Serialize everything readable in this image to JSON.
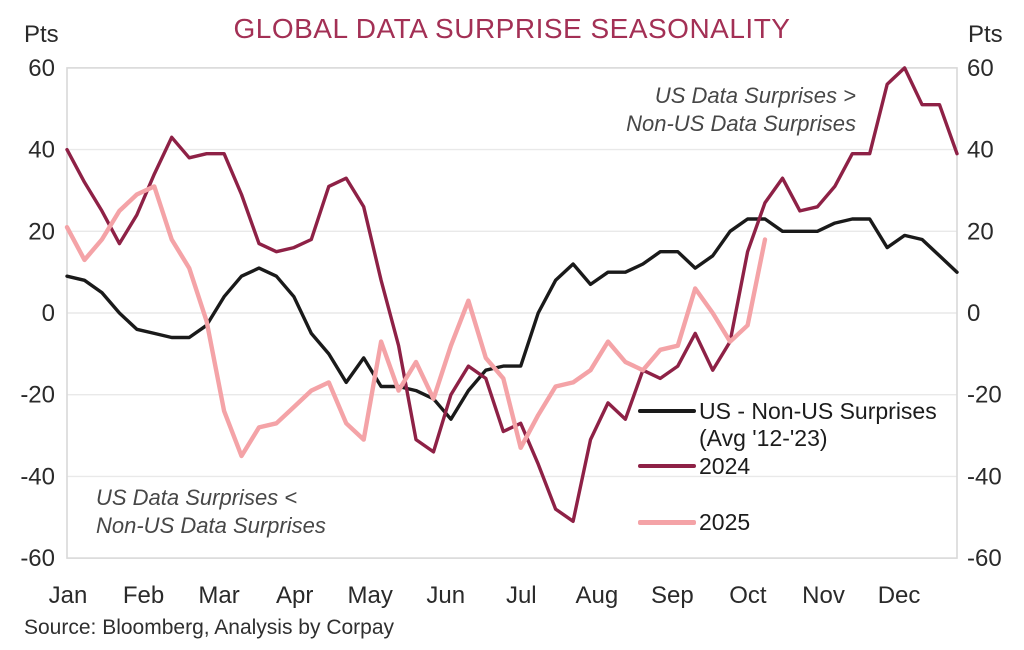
{
  "chart": {
    "title": "GLOBAL DATA SURPRISE SEASONALITY",
    "units_label": "Pts",
    "source": "Source: Bloomberg, Analysis by Corpay",
    "annotation_top_right": {
      "line1": "US Data Surprises >",
      "line2": "Non-US Data Surprises"
    },
    "annotation_bottom_left": {
      "line1": "US Data Surprises <",
      "line2": "Non-US Data Surprises"
    }
  },
  "legend": {
    "avg_label_line1": "US - Non-US Surprises",
    "avg_label_line2": "(Avg '12-'23)",
    "label_2024": "2024",
    "label_2025": "2025"
  },
  "chart_data": {
    "type": "line",
    "title": "GLOBAL DATA SURPRISE SEASONALITY",
    "xlabel": "",
    "ylabel": "Pts",
    "ylim": [
      -60,
      60
    ],
    "y_ticks": [
      60,
      40,
      20,
      0,
      -20,
      -40,
      -60
    ],
    "x_tick_labels": [
      "Jan",
      "Feb",
      "Mar",
      "Apr",
      "May",
      "Jun",
      "Jul",
      "Aug",
      "Sep",
      "Oct",
      "Nov",
      "Dec"
    ],
    "x_unit": "weekly (52 points across Jan-Dec)",
    "grid": "horizontal-light",
    "legend_position": "inside-right",
    "series": [
      {
        "name": "US - Non-US Surprises (Avg '12-'23)",
        "color": "#1a1a1a",
        "width": 3.4,
        "values": [
          9,
          8,
          5,
          0,
          -4,
          -5,
          -6,
          -6,
          -3,
          4,
          9,
          11,
          9,
          4,
          -5,
          -10,
          -17,
          -11,
          -18,
          -18,
          -19,
          -21,
          -26,
          -19,
          -14,
          -13,
          -13,
          0,
          8,
          12,
          7,
          10,
          10,
          12,
          15,
          15,
          11,
          14,
          20,
          23,
          23,
          20,
          20,
          20,
          22,
          23,
          23,
          16,
          19,
          18,
          14,
          10
        ]
      },
      {
        "name": "2024",
        "color": "#8e2146",
        "width": 3.4,
        "values": [
          40,
          32,
          25,
          17,
          24,
          34,
          43,
          38,
          39,
          39,
          29,
          17,
          15,
          16,
          18,
          31,
          33,
          26,
          8,
          -8,
          -31,
          -34,
          -20,
          -13,
          -16,
          -29,
          -27,
          -37,
          -48,
          -51,
          -31,
          -22,
          -26,
          -14,
          -16,
          -13,
          -5,
          -14,
          -7,
          15,
          27,
          33,
          25,
          26,
          31,
          39,
          39,
          56,
          60,
          51,
          51,
          39
        ]
      },
      {
        "name": "2025",
        "color": "#f4a3a7",
        "width": 4.4,
        "values": [
          21,
          13,
          18,
          25,
          29,
          31,
          18,
          11,
          -2,
          -24,
          -35,
          -28,
          -27,
          -23,
          -19,
          -17,
          -27,
          -31,
          -7,
          -19,
          -12,
          -21,
          -8,
          3,
          -11,
          -16,
          -33,
          -25,
          -18,
          -17,
          -14,
          -7,
          -12,
          -14,
          -9,
          -8,
          6,
          0,
          -7,
          -3,
          18
        ]
      }
    ]
  }
}
